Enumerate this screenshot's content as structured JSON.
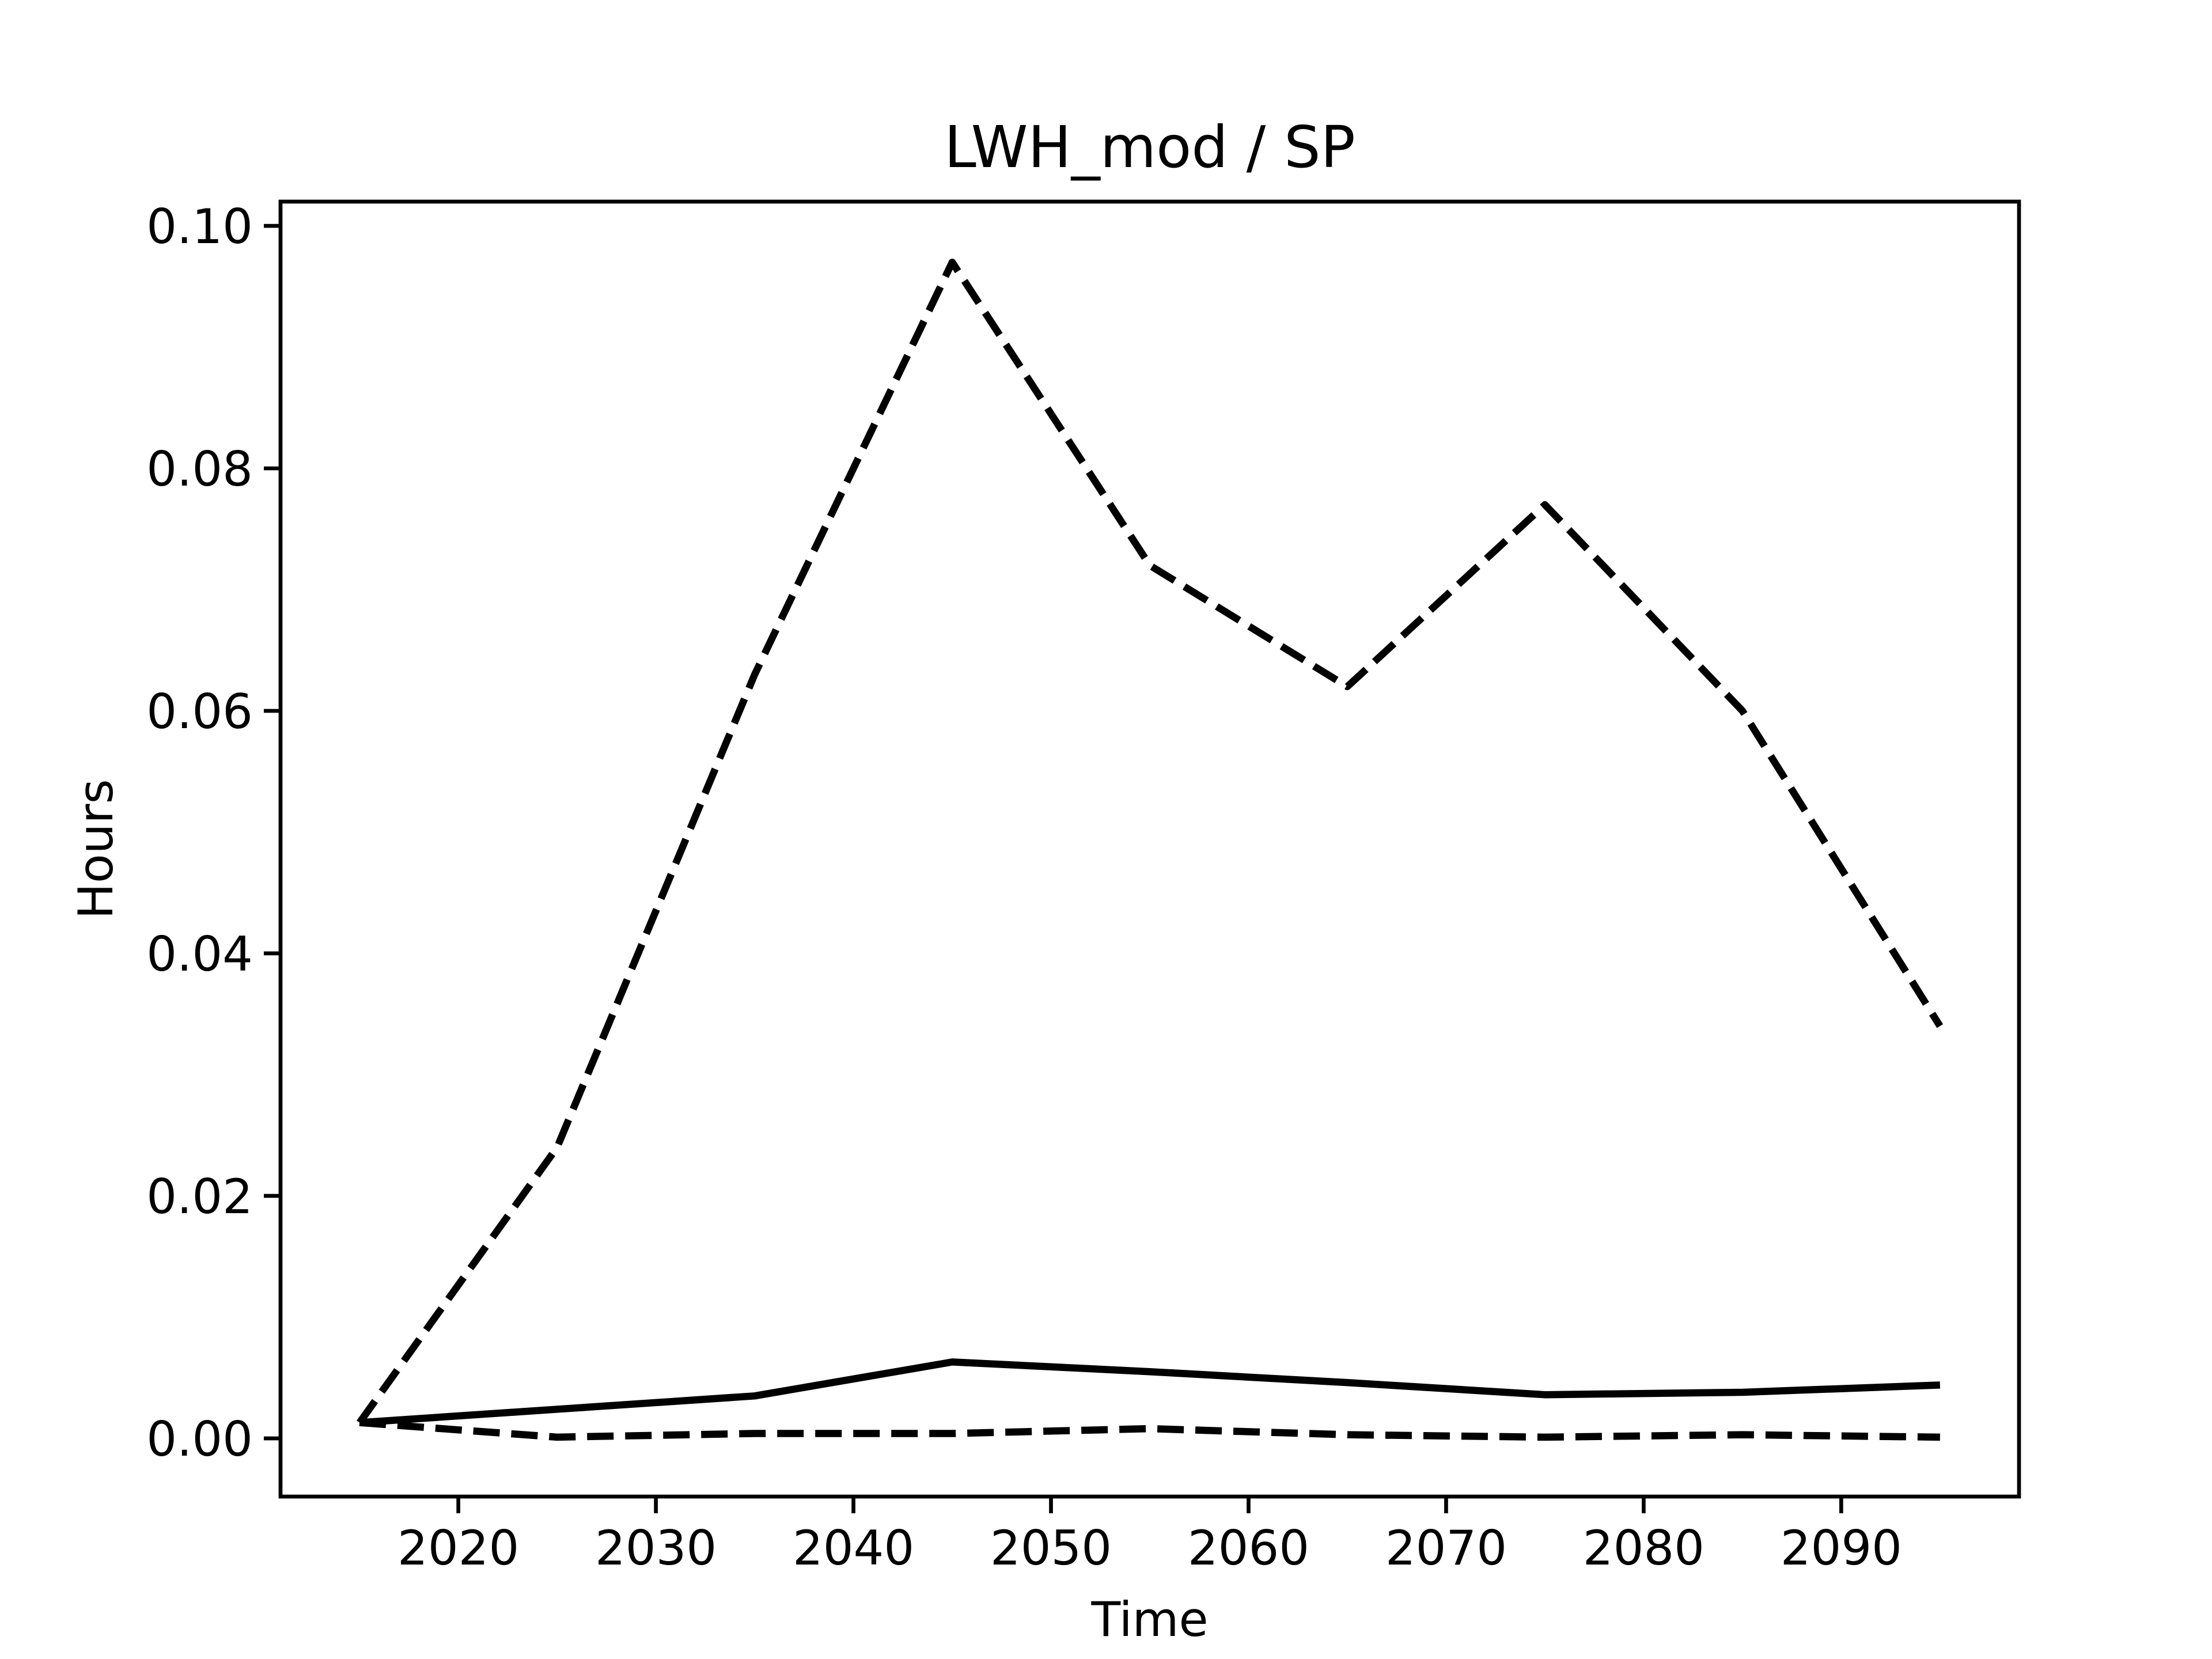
{
  "chart_data": {
    "type": "line",
    "title": "LWH_mod / SP",
    "x_label": "Time",
    "y_label": "Hours",
    "x": [
      2015,
      2025,
      2035,
      2045,
      2055,
      2065,
      2075,
      2085,
      2095
    ],
    "series": [
      {
        "color": "#000000",
        "dashed": true,
        "values": [
          0.0013,
          0.024,
          0.063,
          0.097,
          0.072,
          0.062,
          0.077,
          0.06,
          0.034
        ]
      },
      {
        "color": "#000000",
        "dashed": false,
        "values": [
          0.0013,
          0.0024,
          0.0035,
          0.0063,
          0.0055,
          0.0046,
          0.0036,
          0.0038,
          0.0044
        ]
      },
      {
        "color": "#000000",
        "dashed": true,
        "values": [
          0.0013,
          0.0001,
          0.0004,
          0.0004,
          0.0008,
          0.0003,
          0.0001,
          0.0003,
          0.0001
        ]
      }
    ],
    "xlim": [
      2011,
      2099
    ],
    "ylim": [
      -0.0048,
      0.102
    ],
    "xticks": [
      2020,
      2030,
      2040,
      2050,
      2060,
      2070,
      2080,
      2090
    ],
    "yticks": [
      {
        "value": 0,
        "label": "0.00"
      },
      0.02,
      0.04,
      0.06,
      0.08,
      {
        "value": 0.1,
        "label": "0.10"
      }
    ],
    "grid": false
  }
}
